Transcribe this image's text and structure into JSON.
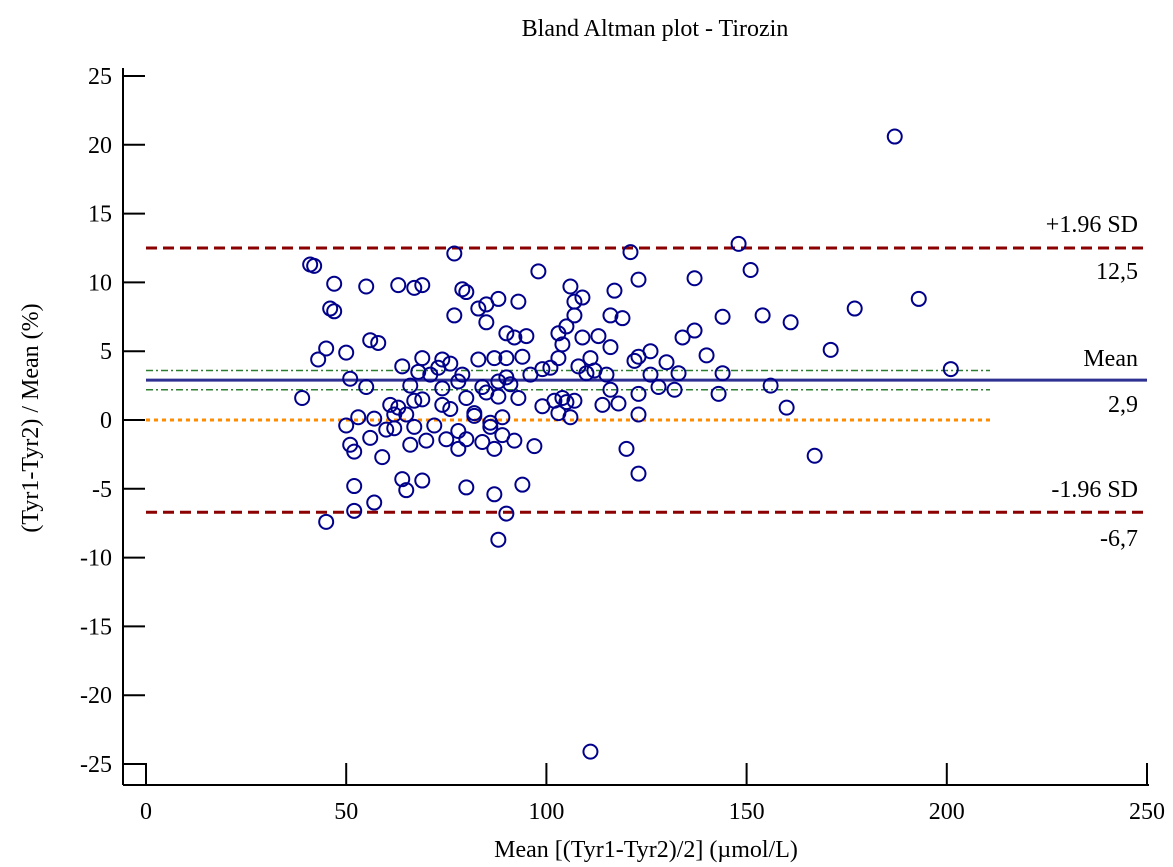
{
  "chart_data": {
    "type": "scatter",
    "title": "Bland Altman plot - Tirozin",
    "xlabel": "Mean [(Tyr1-Tyr2)/2] (µmol/L)",
    "ylabel": "(Tyr1-Tyr2) / Mean (%)",
    "xlim": [
      0,
      250
    ],
    "ylim": [
      -25,
      25
    ],
    "x_ticks": [
      0,
      50,
      100,
      150,
      200,
      250
    ],
    "y_ticks": [
      -25,
      -20,
      -15,
      -10,
      -5,
      0,
      5,
      10,
      15,
      20,
      25
    ],
    "grid": false,
    "reference_lines": {
      "upper_loa": {
        "label": "+1.96 SD",
        "value_label": "12,5",
        "y": 12.5,
        "color": "#8b0000",
        "style": "dashed"
      },
      "mean": {
        "label": "Mean",
        "value_label": "2,9",
        "y": 2.9,
        "color": "#2e3192",
        "style": "solid"
      },
      "lower_loa": {
        "label": "-1.96 SD",
        "value_label": "-6,7",
        "y": -6.7,
        "color": "#8b0000",
        "style": "dashed"
      },
      "zero": {
        "y": 0,
        "color": "#ff8c00",
        "style": "dotted"
      },
      "mean_ci": {
        "y": [
          2.2,
          3.6
        ],
        "color": "#2e7d32",
        "style": "dash-dot"
      }
    },
    "series": [
      {
        "marker": "open-circle",
        "color": "#00008b",
        "points": [
          [
            39,
            1.6
          ],
          [
            41,
            11.3
          ],
          [
            42,
            11.2
          ],
          [
            43,
            4.4
          ],
          [
            45,
            5.2
          ],
          [
            45,
            -7.4
          ],
          [
            46,
            8.1
          ],
          [
            47,
            9.9
          ],
          [
            47,
            7.9
          ],
          [
            50,
            4.9
          ],
          [
            50,
            -0.4
          ],
          [
            51,
            3
          ],
          [
            51,
            -1.8
          ],
          [
            52,
            -2.3
          ],
          [
            52,
            -4.8
          ],
          [
            52,
            -6.6
          ],
          [
            53,
            0.2
          ],
          [
            55,
            9.7
          ],
          [
            55,
            2.4
          ],
          [
            56,
            5.8
          ],
          [
            56,
            -1.3
          ],
          [
            57,
            0.1
          ],
          [
            57,
            -6
          ],
          [
            58,
            5.6
          ],
          [
            59,
            -2.7
          ],
          [
            60,
            -0.7
          ],
          [
            61,
            1.1
          ],
          [
            62,
            0.4
          ],
          [
            62,
            -0.6
          ],
          [
            63,
            9.8
          ],
          [
            63,
            0.9
          ],
          [
            64,
            3.9
          ],
          [
            64,
            -4.3
          ],
          [
            65,
            0.4
          ],
          [
            65,
            -5.1
          ],
          [
            66,
            2.5
          ],
          [
            66,
            -1.8
          ],
          [
            67,
            9.6
          ],
          [
            67,
            1.4
          ],
          [
            67,
            -0.5
          ],
          [
            68,
            3.5
          ],
          [
            69,
            9.8
          ],
          [
            69,
            4.5
          ],
          [
            69,
            1.5
          ],
          [
            69,
            -4.4
          ],
          [
            70,
            -1.5
          ],
          [
            71,
            3.3
          ],
          [
            72,
            -0.4
          ],
          [
            73,
            3.8
          ],
          [
            74,
            4.4
          ],
          [
            74,
            2.3
          ],
          [
            74,
            1.1
          ],
          [
            75,
            -1.4
          ],
          [
            76,
            0.8
          ],
          [
            76,
            4.1
          ],
          [
            77,
            12.1
          ],
          [
            77,
            7.6
          ],
          [
            78,
            2.8
          ],
          [
            78,
            -0.8
          ],
          [
            78,
            -2.1
          ],
          [
            79,
            9.5
          ],
          [
            79,
            3.3
          ],
          [
            80,
            9.3
          ],
          [
            80,
            1.6
          ],
          [
            80,
            -1.4
          ],
          [
            80,
            -4.9
          ],
          [
            82,
            0.5
          ],
          [
            82,
            0.3
          ],
          [
            83,
            8.1
          ],
          [
            83,
            4.4
          ],
          [
            84,
            2.4
          ],
          [
            84,
            -1.6
          ],
          [
            85,
            8.4
          ],
          [
            85,
            7.1
          ],
          [
            85,
            2
          ],
          [
            86,
            -0.2
          ],
          [
            86,
            -0.5
          ],
          [
            87,
            4.5
          ],
          [
            87,
            -5.4
          ],
          [
            87,
            -2.1
          ],
          [
            88,
            8.8
          ],
          [
            88,
            -8.7
          ],
          [
            88,
            2.8
          ],
          [
            88,
            1.7
          ],
          [
            89,
            0.2
          ],
          [
            89,
            -1.1
          ],
          [
            90,
            6.3
          ],
          [
            90,
            4.5
          ],
          [
            90,
            3.1
          ],
          [
            90,
            -6.8
          ],
          [
            91,
            2.6
          ],
          [
            92,
            6
          ],
          [
            92,
            -1.5
          ],
          [
            93,
            8.6
          ],
          [
            93,
            1.6
          ],
          [
            94,
            4.6
          ],
          [
            94,
            -4.7
          ],
          [
            95,
            6.1
          ],
          [
            96,
            3.3
          ],
          [
            97,
            -1.9
          ],
          [
            98,
            10.8
          ],
          [
            99,
            3.7
          ],
          [
            99,
            1
          ],
          [
            101,
            3.8
          ],
          [
            102,
            1.4
          ],
          [
            103,
            6.3
          ],
          [
            103,
            4.5
          ],
          [
            103,
            0.5
          ],
          [
            104,
            5.5
          ],
          [
            104,
            1.6
          ],
          [
            105,
            6.8
          ],
          [
            105,
            1.3
          ],
          [
            106,
            9.7
          ],
          [
            106,
            0.2
          ],
          [
            107,
            8.6
          ],
          [
            107,
            7.6
          ],
          [
            107,
            1.4
          ],
          [
            108,
            3.9
          ],
          [
            109,
            8.9
          ],
          [
            109,
            6
          ],
          [
            110,
            3.4
          ],
          [
            111,
            -24.1
          ],
          [
            111,
            4.5
          ],
          [
            112,
            3.6
          ],
          [
            113,
            6.1
          ],
          [
            114,
            1.1
          ],
          [
            115,
            3.3
          ],
          [
            116,
            7.6
          ],
          [
            116,
            5.3
          ],
          [
            116,
            2.2
          ],
          [
            117,
            9.4
          ],
          [
            118,
            1.2
          ],
          [
            119,
            7.4
          ],
          [
            120,
            -2.1
          ],
          [
            121,
            12.2
          ],
          [
            122,
            4.3
          ],
          [
            123,
            10.2
          ],
          [
            123,
            4.6
          ],
          [
            123,
            1.9
          ],
          [
            123,
            0.4
          ],
          [
            123,
            -3.9
          ],
          [
            126,
            5
          ],
          [
            126,
            3.3
          ],
          [
            128,
            2.4
          ],
          [
            130,
            4.2
          ],
          [
            132,
            2.2
          ],
          [
            133,
            3.4
          ],
          [
            134,
            6
          ],
          [
            137,
            10.3
          ],
          [
            137,
            6.5
          ],
          [
            140,
            4.7
          ],
          [
            143,
            1.9
          ],
          [
            144,
            7.5
          ],
          [
            144,
            3.4
          ],
          [
            148,
            12.8
          ],
          [
            151,
            10.9
          ],
          [
            154,
            7.6
          ],
          [
            156,
            2.5
          ],
          [
            160,
            0.9
          ],
          [
            161,
            7.1
          ],
          [
            167,
            -2.6
          ],
          [
            171,
            5.1
          ],
          [
            177,
            8.1
          ],
          [
            187,
            20.6
          ],
          [
            193,
            8.8
          ],
          [
            201,
            3.7
          ]
        ]
      }
    ]
  }
}
